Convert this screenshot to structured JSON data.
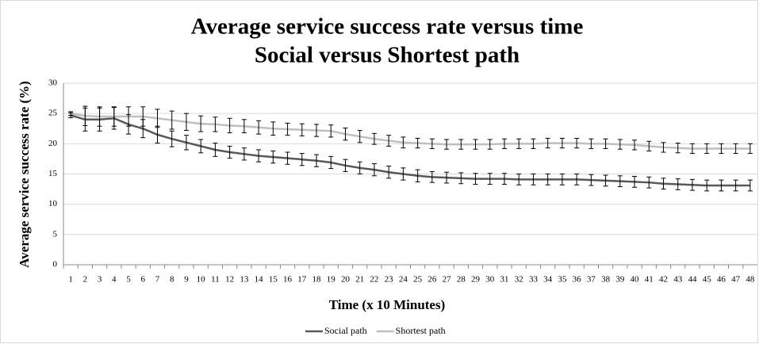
{
  "chart_data": {
    "type": "line",
    "title": "Average service success rate versus time",
    "subtitle": "Social versus Shortest path",
    "x_label": "Time (x 10 Minutes)",
    "y_label": "Average service success rate (%)",
    "categories": [
      "1",
      "2",
      "3",
      "4",
      "5",
      "6",
      "7",
      "8",
      "9",
      "10",
      "11",
      "12",
      "13",
      "14",
      "15",
      "16",
      "17",
      "18",
      "19",
      "20",
      "21",
      "22",
      "23",
      "24",
      "25",
      "26",
      "27",
      "28",
      "29",
      "30",
      "31",
      "32",
      "33",
      "34",
      "35",
      "36",
      "37",
      "38",
      "39",
      "40",
      "41",
      "42",
      "43",
      "44",
      "45",
      "46",
      "47",
      "48"
    ],
    "series": [
      {
        "name": "Social path",
        "color": "#595959",
        "values": [
          24.7,
          24.0,
          24.0,
          24.2,
          23.2,
          22.5,
          21.5,
          20.8,
          20.2,
          19.6,
          19.0,
          18.6,
          18.3,
          18.0,
          17.8,
          17.6,
          17.4,
          17.2,
          16.9,
          16.4,
          16.0,
          15.7,
          15.3,
          15.0,
          14.7,
          14.5,
          14.4,
          14.3,
          14.2,
          14.2,
          14.2,
          14.1,
          14.1,
          14.1,
          14.1,
          14.1,
          14.0,
          13.9,
          13.8,
          13.7,
          13.6,
          13.4,
          13.3,
          13.2,
          13.1,
          13.1,
          13.1,
          13.1
        ],
        "errors": [
          0.4,
          1.9,
          1.9,
          1.8,
          1.6,
          1.5,
          1.4,
          1.3,
          1.2,
          1.1,
          1.1,
          1.0,
          1.0,
          1.0,
          1.0,
          1.0,
          1.0,
          1.0,
          1.0,
          1.0,
          1.0,
          1.0,
          1.0,
          1.0,
          1.0,
          0.9,
          0.9,
          0.9,
          0.9,
          0.9,
          0.9,
          0.9,
          0.9,
          0.9,
          0.9,
          0.9,
          0.9,
          0.9,
          0.9,
          0.9,
          0.9,
          0.9,
          0.9,
          0.9,
          0.9,
          0.9,
          0.9,
          0.9
        ]
      },
      {
        "name": "Shortest path",
        "color": "#bfbfbf",
        "values": [
          25.0,
          24.6,
          24.5,
          24.5,
          24.5,
          24.5,
          24.2,
          23.9,
          23.6,
          23.3,
          23.2,
          23.0,
          22.9,
          22.7,
          22.5,
          22.4,
          22.3,
          22.2,
          22.1,
          21.6,
          21.2,
          20.8,
          20.5,
          20.2,
          20.1,
          20.0,
          19.9,
          19.9,
          19.9,
          19.9,
          20.0,
          20.0,
          20.0,
          20.1,
          20.1,
          20.1,
          20.0,
          20.0,
          19.9,
          19.8,
          19.6,
          19.4,
          19.3,
          19.2,
          19.2,
          19.2,
          19.2,
          19.2
        ],
        "errors": [
          0.3,
          1.6,
          1.6,
          1.6,
          1.6,
          1.6,
          1.5,
          1.5,
          1.4,
          1.3,
          1.2,
          1.2,
          1.1,
          1.1,
          1.1,
          1.0,
          1.0,
          1.0,
          1.0,
          1.0,
          1.0,
          0.9,
          0.9,
          0.9,
          0.8,
          0.8,
          0.8,
          0.8,
          0.8,
          0.8,
          0.8,
          0.8,
          0.8,
          0.8,
          0.8,
          0.8,
          0.8,
          0.8,
          0.8,
          0.8,
          0.8,
          0.8,
          0.8,
          0.8,
          0.8,
          0.8,
          0.8,
          0.8
        ]
      }
    ],
    "ylim": [
      0,
      30
    ],
    "yticks": [
      0,
      5,
      10,
      15,
      20,
      25,
      30
    ],
    "grid": true,
    "legend": "bottom"
  }
}
